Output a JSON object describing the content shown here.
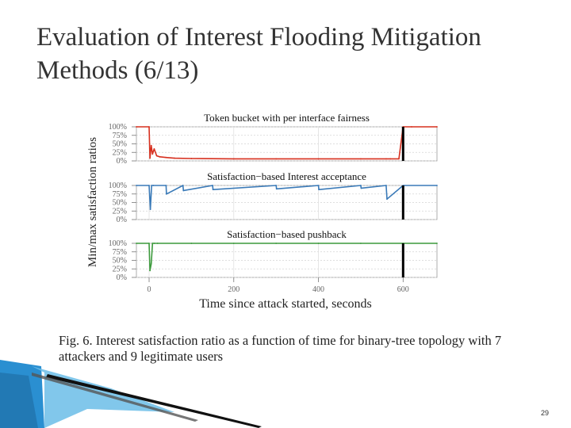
{
  "slide": {
    "title": "Evaluation of Interest Flooding Mitigation Methods (6/13)",
    "caption": "Fig. 6.   Interest satisfaction ratio as a function of time for binary-tree topology with 7 attackers and 9 legitimate users",
    "page_number": "29"
  },
  "chart_data": [
    {
      "type": "line",
      "title": "Token bucket with per interface fairness",
      "color": "#d7301f",
      "x": [
        -30,
        0,
        2,
        5,
        8,
        12,
        18,
        25,
        40,
        60,
        100,
        200,
        300,
        400,
        500,
        560,
        570,
        590,
        600,
        620,
        680
      ],
      "y": [
        100,
        100,
        8,
        45,
        20,
        35,
        15,
        12,
        10,
        8,
        7,
        6,
        6,
        6,
        6,
        6,
        6,
        6,
        100,
        100,
        100
      ]
    },
    {
      "type": "line",
      "title": "Satisfaction−based Interest acceptance",
      "color": "#3a7ab8",
      "x": [
        -30,
        0,
        3,
        6,
        10,
        40,
        41,
        80,
        81,
        150,
        151,
        300,
        301,
        400,
        401,
        500,
        501,
        560,
        562,
        600,
        680
      ],
      "y": [
        100,
        100,
        30,
        100,
        100,
        100,
        75,
        100,
        85,
        100,
        88,
        100,
        90,
        100,
        88,
        100,
        92,
        100,
        60,
        100,
        100
      ]
    },
    {
      "type": "line",
      "title": "Satisfaction−based pushback",
      "color": "#3c9a3c",
      "x": [
        -30,
        0,
        2,
        5,
        8,
        12,
        20,
        100,
        200,
        300,
        400,
        500,
        600,
        680
      ],
      "y": [
        100,
        100,
        20,
        40,
        100,
        100,
        100,
        100,
        100,
        100,
        100,
        100,
        100,
        100
      ]
    }
  ],
  "shared_axes": {
    "ylabel": "Min/max satisfaction ratios",
    "xlabel": "Time since attack started, seconds",
    "yticks": [
      "100%",
      "75%",
      "50%",
      "25%",
      "0%"
    ],
    "xticks": [
      "0",
      "200",
      "400",
      "600"
    ],
    "xlim": [
      -30,
      680
    ],
    "ylim": [
      0,
      100
    ],
    "marker_line_x": 600
  }
}
